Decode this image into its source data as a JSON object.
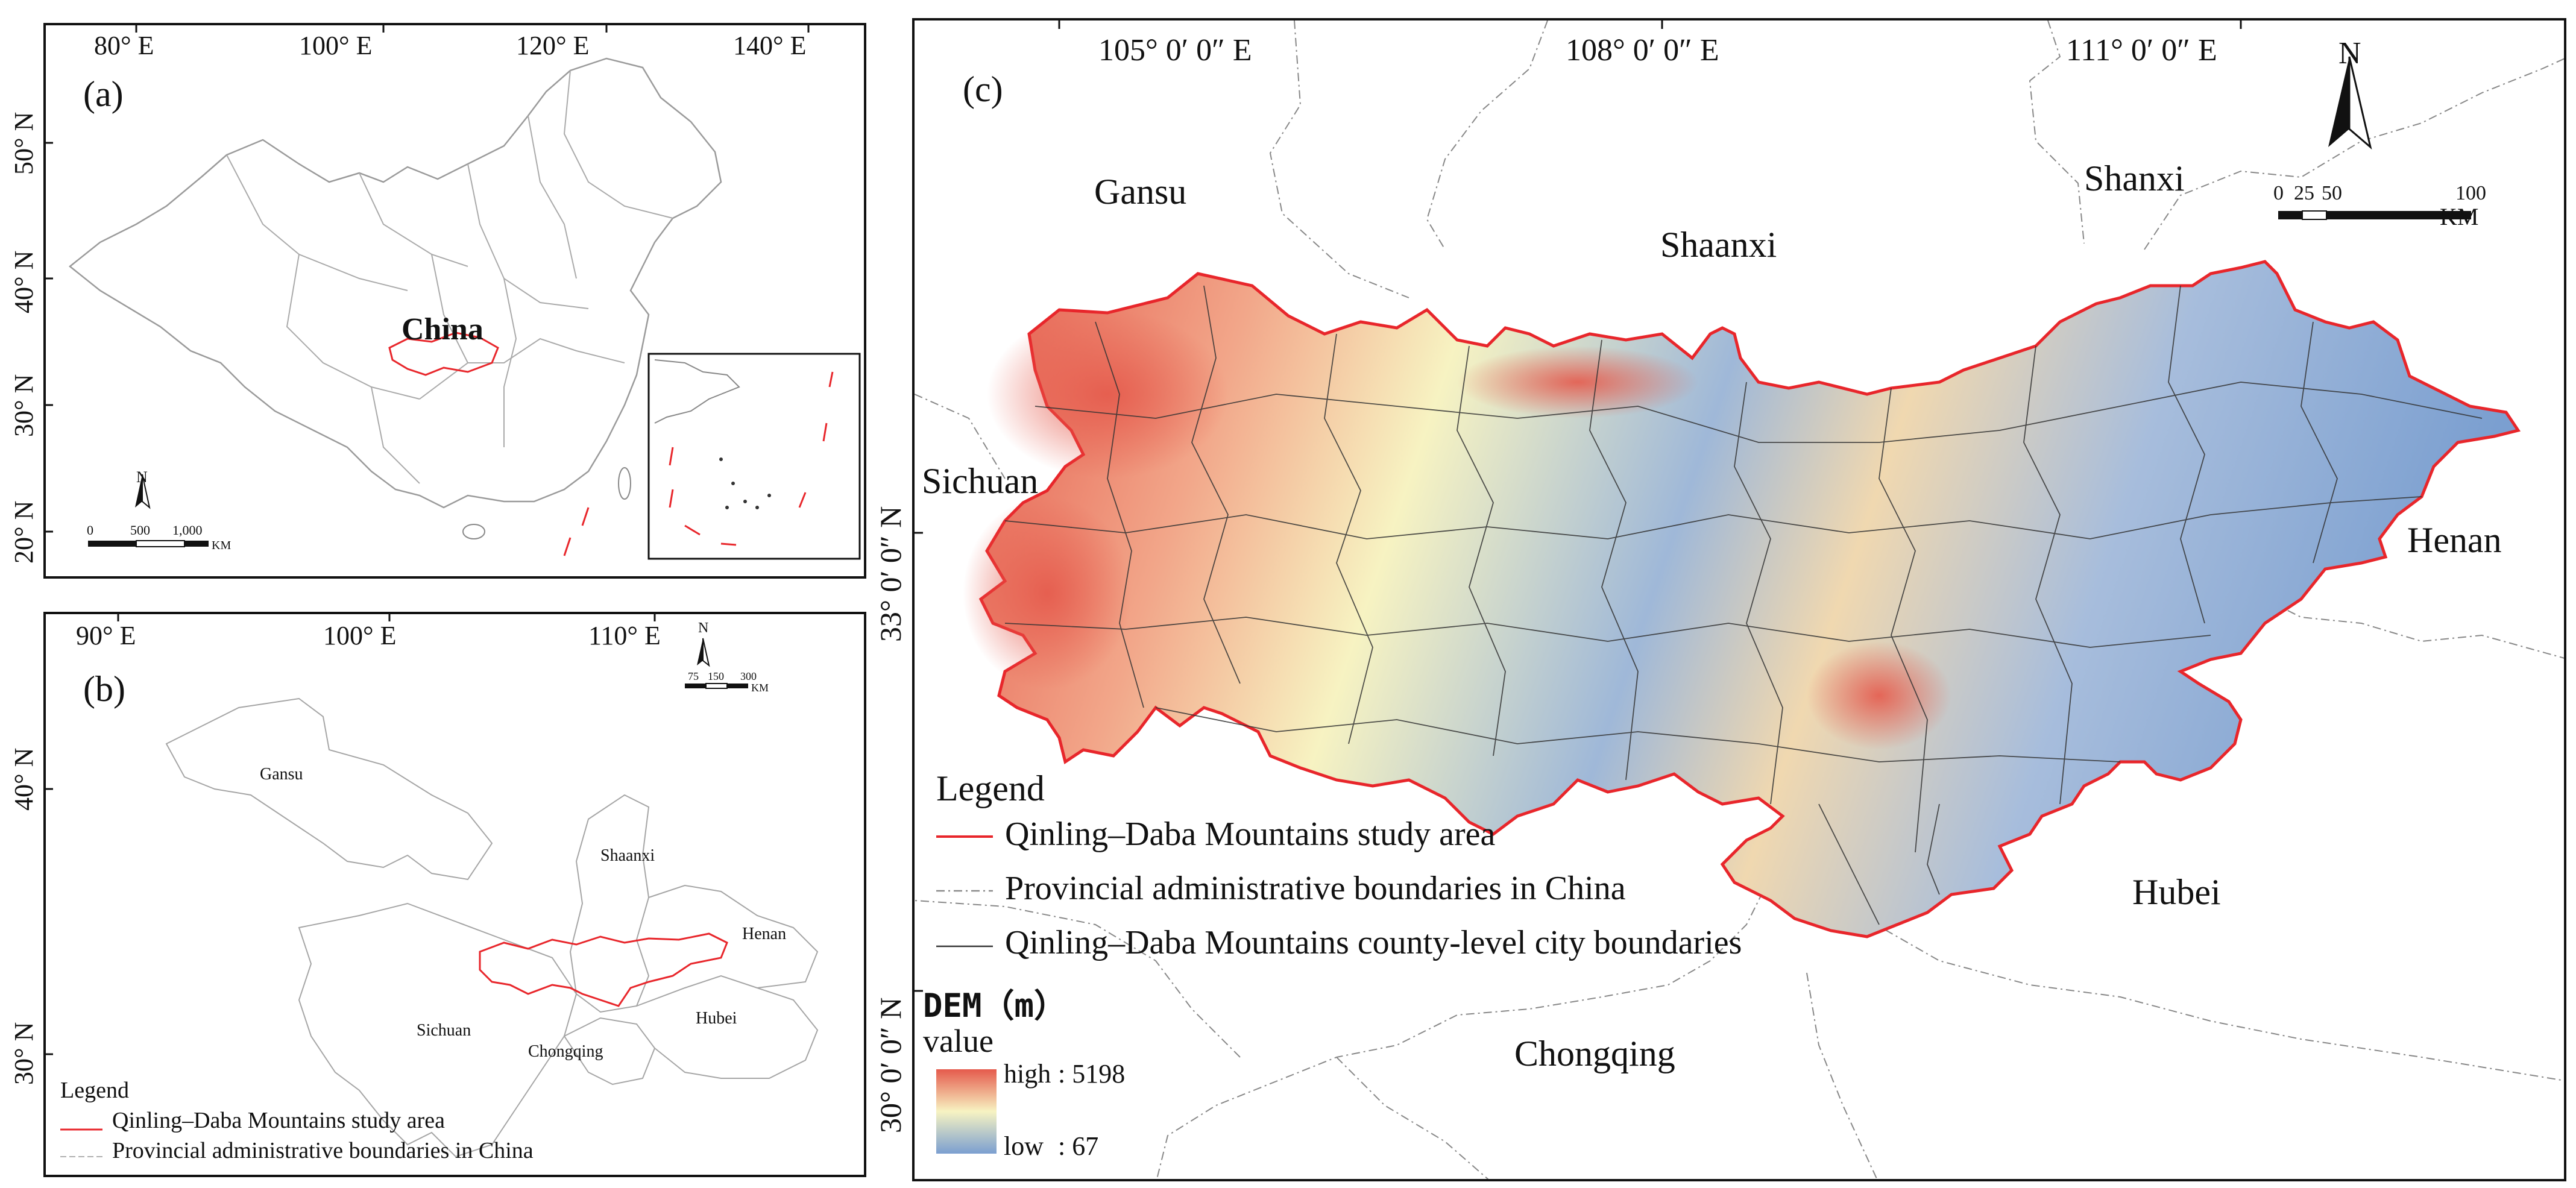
{
  "panel_a": {
    "label": "(a)",
    "country_label": "China",
    "lon_ticks": [
      "80° E",
      "100° E",
      "120° E",
      "140° E"
    ],
    "lat_ticks": [
      "50° N",
      "40° N",
      "30° N",
      "20° N"
    ],
    "north_label": "N",
    "scale_labels": [
      "0",
      "500",
      "1,000"
    ],
    "scale_unit": "KM"
  },
  "panel_b": {
    "label": "(b)",
    "lon_ticks": [
      "90° E",
      "100° E",
      "110° E"
    ],
    "lat_ticks": [
      "40° N",
      "30° N"
    ],
    "north_label": "N",
    "scale_labels": [
      "75",
      "150",
      "300"
    ],
    "scale_unit": "KM",
    "provinces": [
      "Gansu",
      "Shaanxi",
      "Henan",
      "Sichuan",
      "Chongqing",
      "Hubei"
    ],
    "legend_title": "Legend",
    "legend_items": [
      "Qinling–Daba Mountains study area",
      "Provincial administrative boundaries in China"
    ]
  },
  "panel_c": {
    "label": "(c)",
    "lon_ticks": [
      "105°  0′ 0″  E",
      "108°  0′ 0″ E",
      "111°  0′ 0″  E"
    ],
    "lat_ticks": [
      "33°  0′ 0″ N",
      "30°  0′ 0″ N"
    ],
    "north_label": "N",
    "scale_labels": [
      "0",
      "25",
      "50",
      "100"
    ],
    "scale_unit": "KM",
    "provinces": [
      "Gansu",
      "Shaanxi",
      "Shanxi",
      "Sichuan",
      "Henan",
      "Hubei",
      "Chongqing"
    ],
    "legend_title": "Legend",
    "legend_items": [
      "Qinling–Daba Mountains study area",
      "Provincial administrative boundaries in China",
      "Qinling–Daba Mountains county-level city boundaries"
    ],
    "dem_title": "DEM（m）",
    "dem_value_label": "value",
    "dem_high_label": "high",
    "dem_high_value": ": 5198",
    "dem_low_label": "low",
    "dem_low_value": ": 67"
  },
  "colors": {
    "study_area": "#e8262b",
    "province_line": "#888888",
    "county_line": "#333333",
    "dem_high": "#e55a4c",
    "dem_mid": "#f7f3c2",
    "dem_low": "#7b9fd0"
  }
}
